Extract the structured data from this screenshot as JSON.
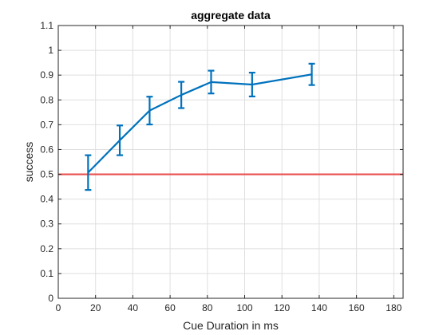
{
  "chart_data": {
    "type": "line",
    "title": "aggregate data",
    "xlabel": "Cue Duration in ms",
    "ylabel": "success",
    "xlim": [
      0,
      185
    ],
    "ylim": [
      0,
      1.1
    ],
    "xticks": [
      0,
      20,
      40,
      60,
      80,
      100,
      120,
      140,
      160,
      180
    ],
    "yticks": [
      0,
      0.1,
      0.2,
      0.3,
      0.4,
      0.5,
      0.6,
      0.7,
      0.8,
      0.9,
      1,
      1.1
    ],
    "grid": true,
    "series": [
      {
        "x": [
          16,
          33,
          49,
          66,
          82,
          104,
          136
        ],
        "y": [
          0.507,
          0.637,
          0.757,
          0.82,
          0.872,
          0.862,
          0.903
        ],
        "err_low": [
          0.07,
          0.06,
          0.056,
          0.053,
          0.046,
          0.048,
          0.043
        ],
        "err_high": [
          0.07,
          0.06,
          0.056,
          0.053,
          0.046,
          0.048,
          0.043
        ],
        "color": "#0072BD"
      }
    ],
    "reference_line": {
      "y": 0.5,
      "color": "#E8504F"
    }
  }
}
